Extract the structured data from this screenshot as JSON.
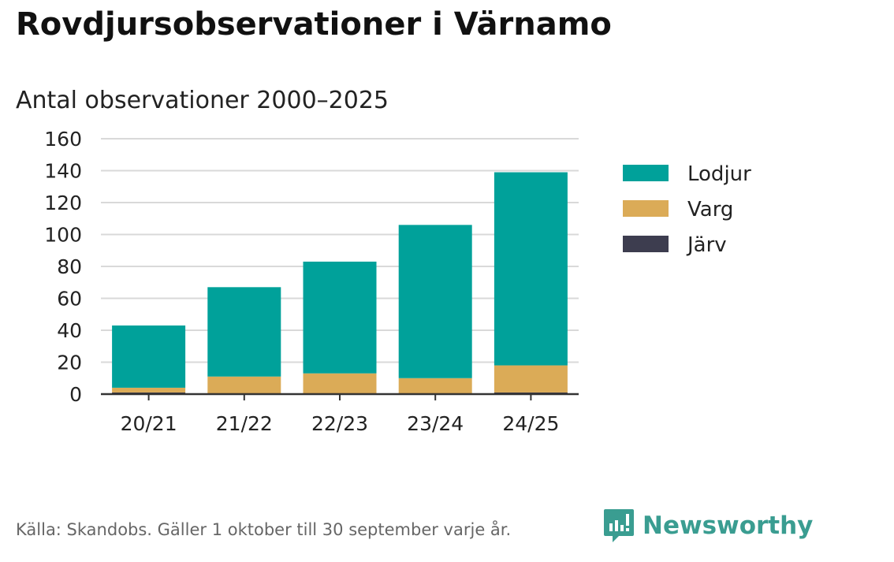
{
  "title": "Rovdjursobservationer i Värnamo",
  "subtitle": "Antal observationer 2000–2025",
  "source": "Källa: Skandobs. Gäller 1 oktober till 30 september varje år.",
  "logo_text": "Newsworthy",
  "chart_data": {
    "type": "bar",
    "stacked": true,
    "title": "Rovdjursobservationer i Värnamo",
    "subtitle": "Antal observationer 2000–2025",
    "xlabel": "",
    "ylabel": "",
    "ylim": [
      0,
      160
    ],
    "yticks": [
      0,
      20,
      40,
      60,
      80,
      100,
      120,
      140,
      160
    ],
    "grid": true,
    "legend_position": "right",
    "categories": [
      "20/21",
      "21/22",
      "22/23",
      "23/24",
      "24/25"
    ],
    "series": [
      {
        "name": "Järv",
        "color": "#3d3d4f",
        "values": [
          1,
          0,
          0,
          0,
          1
        ]
      },
      {
        "name": "Varg",
        "color": "#dbab57",
        "values": [
          3,
          11,
          13,
          10,
          17
        ]
      },
      {
        "name": "Lodjur",
        "color": "#00a19a",
        "values": [
          39,
          56,
          70,
          96,
          121
        ]
      }
    ],
    "legend_order": [
      "Lodjur",
      "Varg",
      "Järv"
    ]
  }
}
